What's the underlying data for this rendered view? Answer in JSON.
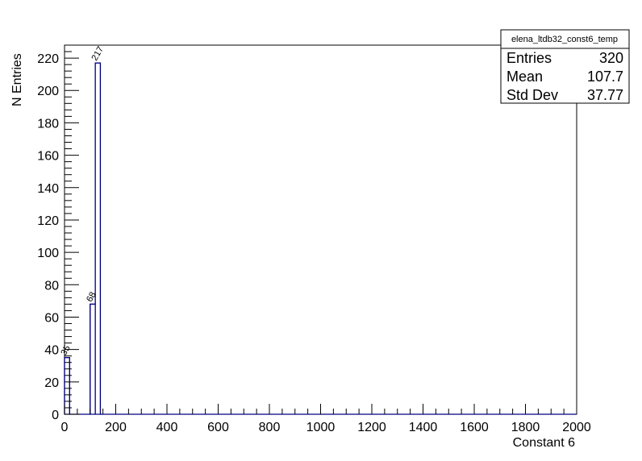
{
  "chart_data": {
    "type": "bar",
    "histogram_name": "elena_ltdb32_const6_temp",
    "xlabel": "Constant 6",
    "ylabel": "N Entries",
    "xlim": [
      0,
      2000
    ],
    "ylim": [
      0,
      228
    ],
    "x_ticks": [
      0,
      200,
      400,
      600,
      800,
      1000,
      1200,
      1400,
      1600,
      1800,
      2000
    ],
    "x_tick_labels": [
      "0",
      "200",
      "400",
      "600",
      "800",
      "1000",
      "1200",
      "1400",
      "1600",
      "1800",
      "2000"
    ],
    "y_ticks": [
      0,
      20,
      40,
      60,
      80,
      100,
      120,
      140,
      160,
      180,
      200,
      220
    ],
    "y_tick_labels": [
      "0",
      "20",
      "40",
      "60",
      "80",
      "100",
      "120",
      "140",
      "160",
      "180",
      "200",
      "220"
    ],
    "bin_width": 20,
    "bins": [
      {
        "x_low": 0,
        "x_high": 20,
        "value": 35,
        "label": "35"
      },
      {
        "x_low": 100,
        "x_high": 120,
        "value": 68,
        "label": "68"
      },
      {
        "x_low": 120,
        "x_high": 140,
        "value": 217,
        "label": "217"
      }
    ],
    "line_color": "#000080",
    "grid": false,
    "legend_position": "top-right"
  },
  "stats": {
    "title": "elena_ltdb32_const6_temp",
    "rows": [
      {
        "label": "Entries",
        "value": "320"
      },
      {
        "label": "Mean",
        "value": "107.7"
      },
      {
        "label": "Std Dev",
        "value": "37.77"
      }
    ]
  }
}
